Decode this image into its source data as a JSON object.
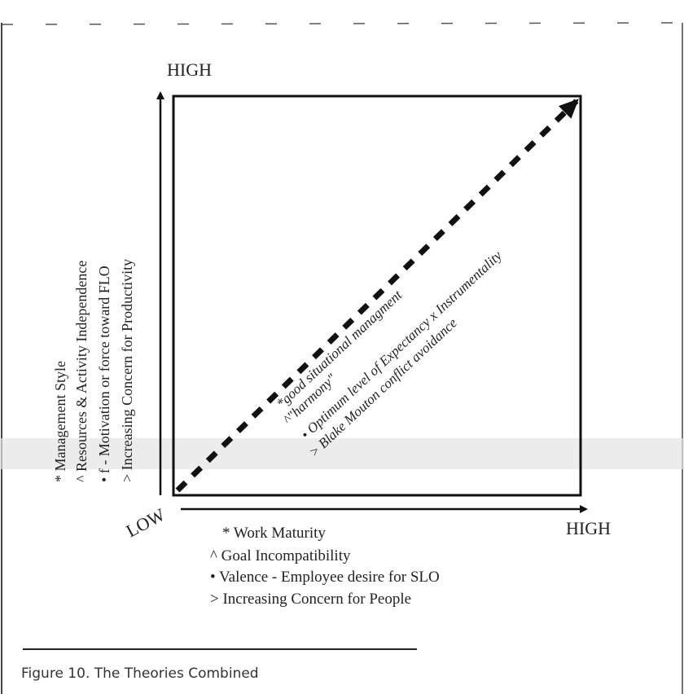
{
  "y_axis": {
    "high": "HIGH",
    "low": "LOW",
    "labels": [
      "* Management Style",
      "^ Resources & Activity Independence",
      "• f - Motivation or force toward FLO",
      "> Increasing Concern for Productivity"
    ]
  },
  "x_axis": {
    "high": "HIGH",
    "labels": [
      "* Work Maturity",
      "^ Goal Incompatibility",
      "• Valence - Employee desire for SLO",
      "> Increasing Concern for People"
    ]
  },
  "diagonal_labels": [
    "*good situational managment",
    "^\"harmony\"",
    "• Optimum level of Expectancy x Instrumentality",
    "> Blake Mouton conflict avoidance"
  ],
  "caption": "Figure 10.  The Theories Combined"
}
